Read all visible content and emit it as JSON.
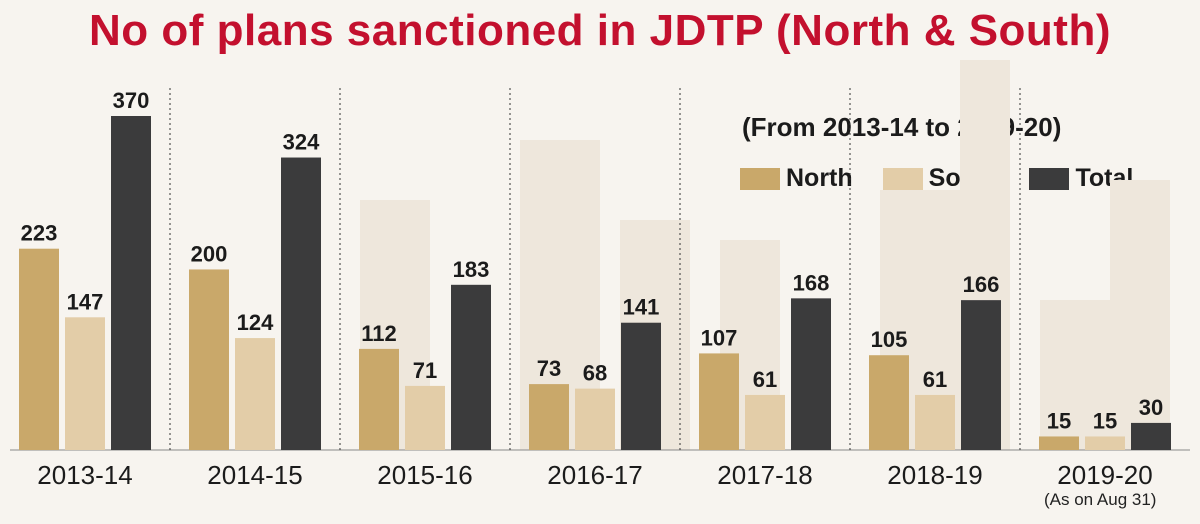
{
  "chart_data": {
    "type": "bar",
    "title": "No of plans sanctioned in JDTP (North & South)",
    "subtitle": "(From 2013-14 to 2019-20)",
    "categories": [
      "2013-14",
      "2014-15",
      "2015-16",
      "2016-17",
      "2017-18",
      "2018-19",
      "2019-20"
    ],
    "series": [
      {
        "name": "North",
        "values": [
          223,
          200,
          112,
          73,
          107,
          105,
          15
        ],
        "color": "#c9a86a"
      },
      {
        "name": "South",
        "values": [
          147,
          124,
          71,
          68,
          61,
          61,
          15
        ],
        "color": "#e3cda8"
      },
      {
        "name": "Total",
        "values": [
          370,
          324,
          183,
          141,
          168,
          166,
          30
        ],
        "color": "#3b3b3c"
      }
    ],
    "ylim": [
      0,
      370
    ],
    "data_labels": true,
    "legend_position": "top-right",
    "grid": false,
    "footnote": "(As on Aug 31)"
  }
}
